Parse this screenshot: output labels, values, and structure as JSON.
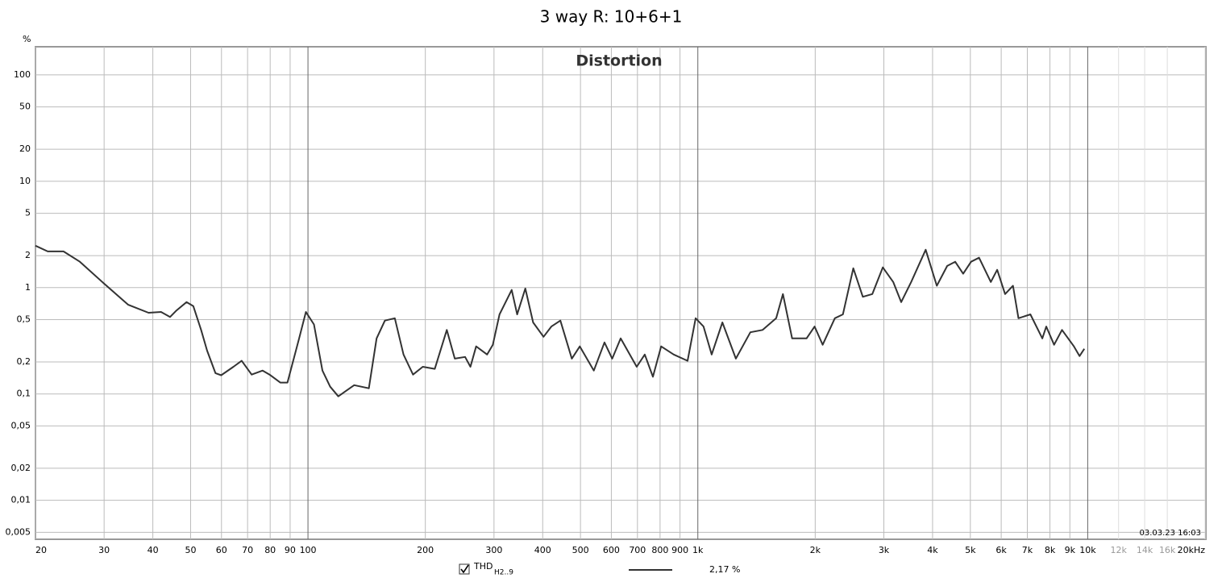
{
  "chart_data": {
    "type": "line",
    "title": "3 way R: 10+6+1",
    "subtitle": "Distortion",
    "y_unit": "%",
    "timestamp": "03.03.23 16:03",
    "x_log": true,
    "y_log": true,
    "grid": true,
    "xlim": [
      20,
      20000
    ],
    "ylim": [
      0.0043,
      184
    ],
    "xticks": [
      20,
      30,
      40,
      50,
      60,
      70,
      80,
      90,
      100,
      200,
      300,
      400,
      500,
      600,
      700,
      800,
      900,
      {
        "value": 1000,
        "label": "1k"
      },
      {
        "value": 2000,
        "label": "2k"
      },
      {
        "value": 3000,
        "label": "3k"
      },
      {
        "value": 4000,
        "label": "4k"
      },
      {
        "value": 5000,
        "label": "5k"
      },
      {
        "value": 6000,
        "label": "6k"
      },
      {
        "value": 7000,
        "label": "7k"
      },
      {
        "value": 8000,
        "label": "8k"
      },
      {
        "value": 9000,
        "label": "9k"
      },
      {
        "value": 10000,
        "label": "10k"
      },
      {
        "value": 12000,
        "label": "12k"
      },
      {
        "value": 14000,
        "label": "14k"
      },
      {
        "value": 16000,
        "label": "16k"
      },
      {
        "value": 20000,
        "label": "20kHz"
      }
    ],
    "yticks": [
      100,
      50,
      20,
      10,
      5,
      2,
      1,
      {
        "value": 0.5,
        "label": "0,5"
      },
      {
        "value": 0.2,
        "label": "0,2"
      },
      {
        "value": 0.1,
        "label": "0,1"
      },
      {
        "value": 0.05,
        "label": "0,05"
      },
      {
        "value": 0.02,
        "label": "0,02"
      },
      {
        "value": 0.01,
        "label": "0,01"
      },
      {
        "value": 0.005,
        "label": "0,005"
      }
    ],
    "x": [
      20,
      21.5,
      23.6,
      26,
      30,
      34.6,
      39,
      42,
      44.3,
      46,
      48.8,
      50.8,
      53.2,
      55.1,
      57.9,
      59.9,
      64.4,
      67.6,
      71.7,
      76.5,
      79.7,
      84.9,
      88.6,
      94.9,
      98.8,
      103.6,
      108.9,
      114,
      119.6,
      125.3,
      131.4,
      143.3,
      150,
      157.5,
      167,
      175.8,
      186,
      197,
      211.5,
      227,
      238,
      253,
      261,
      270,
      288,
      298,
      310,
      333,
      344,
      361,
      378,
      402,
      421,
      444,
      475,
      498,
      541,
      576,
      603,
      634,
      697,
      731,
      767,
      805,
      867,
      941,
      987,
      1034,
      1085,
      1156,
      1252,
      1364,
      1466,
      1588,
      1653,
      1745,
      1900,
      1993,
      2090,
      2246,
      2355,
      2505,
      2650,
      2803,
      2982,
      3171,
      3324,
      3525,
      3840,
      4101,
      4361,
      4572,
      4792,
      5022,
      5263,
      5643,
      5858,
      6138,
      6432,
      6645,
      7130,
      7648,
      7830,
      8200,
      8590,
      9220,
      9530,
      9800
    ],
    "series": [
      {
        "name": "THD",
        "name_subscript": "H2..9",
        "legend_value": "2,17 %",
        "color": "#333333",
        "values": [
          2.48,
          2.19,
          2.19,
          1.75,
          1.09,
          0.69,
          0.58,
          0.59,
          0.53,
          0.61,
          0.73,
          0.67,
          0.4,
          0.256,
          0.157,
          0.15,
          0.18,
          0.205,
          0.152,
          0.166,
          0.152,
          0.128,
          0.128,
          0.333,
          0.59,
          0.45,
          0.166,
          0.117,
          0.095,
          0.107,
          0.121,
          0.113,
          0.333,
          0.49,
          0.515,
          0.235,
          0.152,
          0.18,
          0.172,
          0.4,
          0.215,
          0.223,
          0.18,
          0.28,
          0.235,
          0.29,
          0.56,
          0.95,
          0.56,
          0.98,
          0.47,
          0.345,
          0.43,
          0.49,
          0.215,
          0.28,
          0.166,
          0.305,
          0.215,
          0.333,
          0.18,
          0.235,
          0.145,
          0.28,
          0.235,
          0.205,
          0.515,
          0.43,
          0.235,
          0.47,
          0.215,
          0.38,
          0.4,
          0.515,
          0.87,
          0.333,
          0.333,
          0.43,
          0.29,
          0.515,
          0.56,
          1.52,
          0.82,
          0.87,
          1.55,
          1.13,
          0.73,
          1.13,
          2.27,
          1.04,
          1.6,
          1.75,
          1.35,
          1.75,
          1.91,
          1.13,
          1.47,
          0.87,
          1.04,
          0.515,
          0.56,
          0.333,
          0.43,
          0.29,
          0.4,
          0.28,
          0.227,
          0.266
        ]
      }
    ]
  }
}
